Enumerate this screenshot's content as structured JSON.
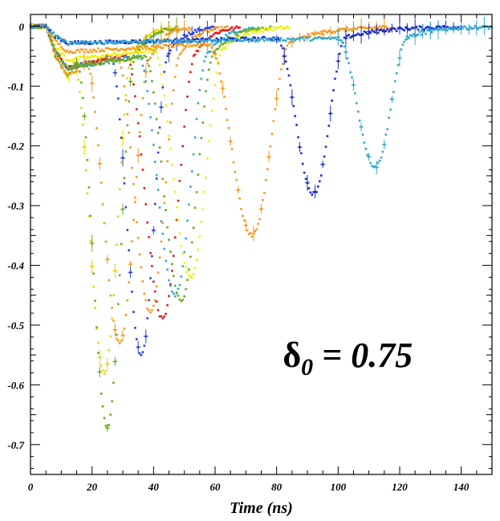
{
  "chart_data": {
    "type": "scatter",
    "title": "",
    "xlabel": "Time (ns)",
    "ylabel": "",
    "xlim": [
      0,
      150
    ],
    "ylim": [
      -0.75,
      0.02
    ],
    "grid": false,
    "x_ticks": [
      0,
      20,
      40,
      60,
      80,
      100,
      120,
      140
    ],
    "y_ticks": [
      0,
      -0.1,
      -0.2,
      -0.3,
      -0.4,
      -0.5,
      -0.6,
      -0.7
    ],
    "x_tick_labels": [
      "0",
      "20",
      "40",
      "60",
      "80",
      "100",
      "120",
      "140"
    ],
    "y_tick_labels": [
      "0",
      "-0.1",
      "-0.2",
      "-0.3",
      "-0.4",
      "-0.5",
      "-0.6",
      "-0.7"
    ],
    "annotation": {
      "symbol": "δ",
      "subscript": "0",
      "text": " = 0.75"
    },
    "series": [
      {
        "color": "#e8d400",
        "pulse_start": 14,
        "peak_x": 24,
        "peak_y": -0.58,
        "tail_end": 46,
        "baseline": -0.06,
        "error_bars": true
      },
      {
        "color": "#6aaa1e",
        "pulse_start": 15,
        "peak_x": 25,
        "peak_y": -0.67,
        "tail_end": 48,
        "baseline": -0.06,
        "error_bars": true
      },
      {
        "color": "#f39a1c",
        "pulse_start": 18,
        "peak_x": 29,
        "peak_y": -0.53,
        "tail_end": 52,
        "baseline": -0.06,
        "error_bars": true
      },
      {
        "color": "#2d3fd8",
        "pulse_start": 26,
        "peak_x": 36,
        "peak_y": -0.55,
        "tail_end": 60,
        "baseline": -0.05,
        "error_bars": true
      },
      {
        "color": "#f39a1c",
        "pulse_start": 28,
        "peak_x": 39,
        "peak_y": -0.48,
        "tail_end": 64,
        "baseline": -0.05,
        "error_bars": false
      },
      {
        "color": "#e01818",
        "pulse_start": 31,
        "peak_x": 43,
        "peak_y": -0.49,
        "tail_end": 68,
        "baseline": -0.05,
        "error_bars": false
      },
      {
        "color": "#32a8d0",
        "pulse_start": 35,
        "peak_x": 47,
        "peak_y": -0.45,
        "tail_end": 74,
        "baseline": -0.05,
        "error_bars": false
      },
      {
        "color": "#6aaa1e",
        "pulse_start": 37,
        "peak_x": 49,
        "peak_y": -0.46,
        "tail_end": 78,
        "baseline": -0.05,
        "error_bars": false
      },
      {
        "color": "#f2f000",
        "pulse_start": 40,
        "peak_x": 52,
        "peak_y": -0.42,
        "tail_end": 84,
        "baseline": -0.04,
        "error_bars": false
      },
      {
        "color": "#f39a1c",
        "pulse_start": 58,
        "peak_x": 72,
        "peak_y": -0.35,
        "tail_end": 118,
        "baseline": -0.03,
        "error_bars": true
      },
      {
        "color": "#1c2cc8",
        "pulse_start": 80,
        "peak_x": 92,
        "peak_y": -0.28,
        "tail_end": 140,
        "baseline": -0.02,
        "error_bars": true
      },
      {
        "color": "#32a8d0",
        "pulse_start": 100,
        "peak_x": 112,
        "peak_y": -0.235,
        "tail_end": 150,
        "baseline": -0.02,
        "error_bars": true
      }
    ]
  }
}
